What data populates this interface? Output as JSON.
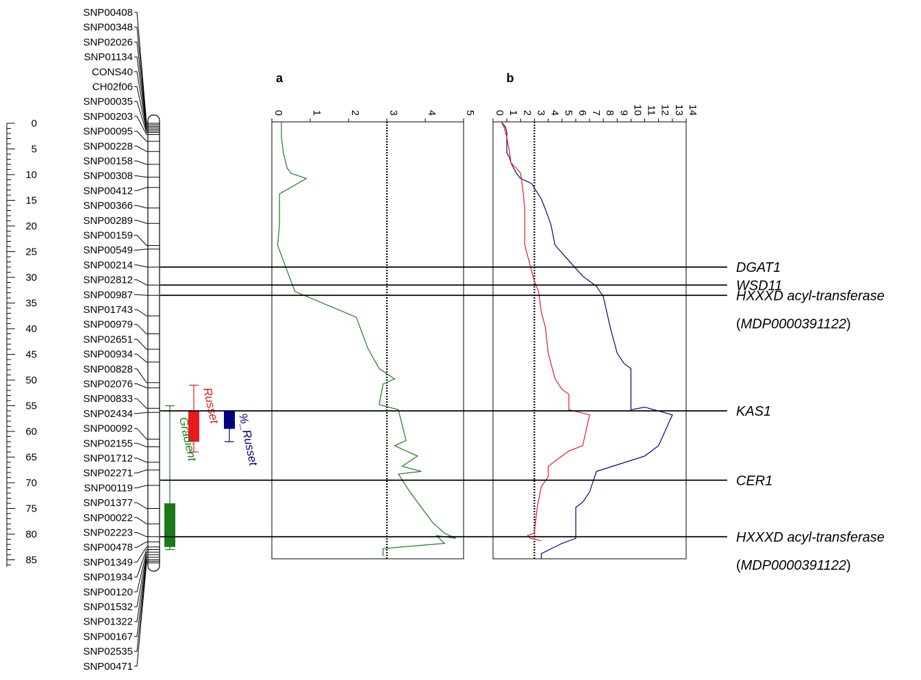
{
  "colors": {
    "gradient": "#1a7a1a",
    "russet": "#e8191d",
    "pct_russet": "#000080",
    "black": "#000000"
  },
  "chart_data": {
    "type": "line",
    "linkage_map": {
      "scale_ticks": [
        0,
        5,
        10,
        15,
        20,
        25,
        30,
        35,
        40,
        45,
        50,
        55,
        60,
        65,
        70,
        75,
        80,
        85
      ],
      "scale_range": [
        0,
        85
      ],
      "markers": [
        {
          "name": "SNP00408",
          "pos": 0.0
        },
        {
          "name": "SNP00348",
          "pos": 0.3
        },
        {
          "name": "SNP02026",
          "pos": 0.6
        },
        {
          "name": "SNP01134",
          "pos": 0.9
        },
        {
          "name": "CONS40",
          "pos": 1.2
        },
        {
          "name": "CH02f06",
          "pos": 1.5
        },
        {
          "name": "SNP00035",
          "pos": 1.8
        },
        {
          "name": "SNP00203",
          "pos": 2.2
        },
        {
          "name": "SNP00095",
          "pos": 3.5
        },
        {
          "name": "SNP00228",
          "pos": 5.5
        },
        {
          "name": "SNP00158",
          "pos": 8.0
        },
        {
          "name": "SNP00308",
          "pos": 10.5
        },
        {
          "name": "SNP00412",
          "pos": 12.5
        },
        {
          "name": "SNP00366",
          "pos": 16.5
        },
        {
          "name": "SNP00289",
          "pos": 19.5
        },
        {
          "name": "SNP00159",
          "pos": 23.8
        },
        {
          "name": "SNP00549",
          "pos": 24.5
        },
        {
          "name": "SNP00214",
          "pos": 28.0
        },
        {
          "name": "SNP02812",
          "pos": 31.5
        },
        {
          "name": "SNP00987",
          "pos": 33.5
        },
        {
          "name": "SNP01743",
          "pos": 37.5
        },
        {
          "name": "SNP00979",
          "pos": 41.0
        },
        {
          "name": "SNP02651",
          "pos": 44.0
        },
        {
          "name": "SNP00934",
          "pos": 46.5
        },
        {
          "name": "SNP00828",
          "pos": 50.5
        },
        {
          "name": "SNP02076",
          "pos": 51.5
        },
        {
          "name": "SNP00833",
          "pos": 55.5
        },
        {
          "name": "SNP02434",
          "pos": 56.3
        },
        {
          "name": "SNP00092",
          "pos": 61.5
        },
        {
          "name": "SNP02155",
          "pos": 63.0
        },
        {
          "name": "SNP01712",
          "pos": 66.0
        },
        {
          "name": "SNP02271",
          "pos": 67.5
        },
        {
          "name": "SNP00119",
          "pos": 70.5
        },
        {
          "name": "SNP01377",
          "pos": 75.0
        },
        {
          "name": "SNP00022",
          "pos": 78.0
        },
        {
          "name": "SNP02223",
          "pos": 80.5
        },
        {
          "name": "SNP00478",
          "pos": 81.5
        },
        {
          "name": "SNP01349",
          "pos": 82.5
        },
        {
          "name": "SNP01934",
          "pos": 83.0
        },
        {
          "name": "SNP00120",
          "pos": 83.5
        },
        {
          "name": "SNP01532",
          "pos": 84.0
        },
        {
          "name": "SNP01322",
          "pos": 84.5
        },
        {
          "name": "SNP00167",
          "pos": 85.0
        },
        {
          "name": "SNP02535",
          "pos": 85.3
        },
        {
          "name": "SNP00471",
          "pos": 85.6
        }
      ]
    },
    "qtl_intervals": [
      {
        "label": "Russet",
        "color": "#e8191d",
        "bar": [
          56,
          62
        ],
        "whisker": [
          51,
          64
        ]
      },
      {
        "label": "%_Russet",
        "color": "#000080",
        "bar": [
          56,
          59.5
        ],
        "whisker": [
          56,
          62
        ]
      },
      {
        "label": "Gradient",
        "color": "#1a7a1a",
        "bar": [
          74,
          82.5
        ],
        "whisker": [
          55,
          83
        ]
      }
    ],
    "genes": [
      {
        "pos": 28.0,
        "name": "DGAT1"
      },
      {
        "pos": 31.5,
        "name": "WSD11"
      },
      {
        "pos": 33.5,
        "name": "HXXXD acyl-transferase",
        "id": "MDP0000391122"
      },
      {
        "pos": 56.0,
        "name": "KAS1"
      },
      {
        "pos": 69.5,
        "name": "CER1"
      },
      {
        "pos": 80.5,
        "name": "HXXXD acyl-transferase",
        "id": "MDP0000391122"
      }
    ],
    "panels": [
      {
        "label": "a",
        "xlim": [
          0,
          5
        ],
        "ticks": [
          0,
          1,
          2,
          3,
          4,
          5
        ],
        "threshold": 3.0,
        "series": [
          {
            "color": "#1a7a1a",
            "points": [
              [
                0.25,
                0
              ],
              [
                0.25,
                3
              ],
              [
                0.3,
                6
              ],
              [
                0.4,
                9
              ],
              [
                0.5,
                10
              ],
              [
                0.9,
                11
              ],
              [
                0.2,
                14
              ],
              [
                0.2,
                20
              ],
              [
                0.15,
                24
              ],
              [
                0.2,
                25
              ],
              [
                0.35,
                28
              ],
              [
                0.5,
                31
              ],
              [
                0.6,
                33
              ],
              [
                2.2,
                38
              ],
              [
                2.5,
                44
              ],
              [
                2.8,
                48
              ],
              [
                3.2,
                50
              ],
              [
                2.9,
                51
              ],
              [
                2.8,
                55
              ],
              [
                3.3,
                56
              ],
              [
                3.5,
                62
              ],
              [
                3.2,
                63
              ],
              [
                3.8,
                65
              ],
              [
                3.4,
                67
              ],
              [
                3.9,
                68
              ],
              [
                3.3,
                68.5
              ],
              [
                3.6,
                72
              ],
              [
                4.2,
                78
              ],
              [
                4.5,
                80
              ],
              [
                4.8,
                81
              ],
              [
                4.3,
                80.5
              ],
              [
                4.5,
                82
              ],
              [
                2.9,
                83
              ],
              [
                2.9,
                84.5
              ]
            ]
          }
        ]
      },
      {
        "label": "b",
        "xlim": [
          0,
          14
        ],
        "ticks": [
          0,
          1,
          2,
          3,
          4,
          5,
          6,
          7,
          8,
          9,
          10,
          11,
          12,
          13,
          14
        ],
        "threshold": 3.0,
        "series": [
          {
            "color": "#000080",
            "points": [
              [
                0.6,
                0
              ],
              [
                0.9,
                1
              ],
              [
                1.0,
                2
              ],
              [
                1.0,
                6
              ],
              [
                1.2,
                7
              ],
              [
                1.3,
                8
              ],
              [
                1.7,
                10
              ],
              [
                2.0,
                11
              ],
              [
                2.8,
                12
              ],
              [
                3.5,
                15
              ],
              [
                3.8,
                17
              ],
              [
                4.2,
                20
              ],
              [
                4.5,
                24
              ],
              [
                5.5,
                27
              ],
              [
                6.5,
                30
              ],
              [
                7.5,
                32
              ],
              [
                8.0,
                34
              ],
              [
                8.5,
                40
              ],
              [
                9.0,
                45
              ],
              [
                9.5,
                47
              ],
              [
                10.0,
                48
              ],
              [
                10.0,
                56
              ],
              [
                11.0,
                55.5
              ],
              [
                13.0,
                57
              ],
              [
                12.0,
                63
              ],
              [
                11.0,
                65
              ],
              [
                7.5,
                68
              ],
              [
                7.0,
                72
              ],
              [
                6.5,
                74
              ],
              [
                6.0,
                75
              ],
              [
                6.0,
                81
              ],
              [
                5.0,
                82
              ],
              [
                3.5,
                84
              ],
              [
                3.5,
                85
              ]
            ]
          },
          {
            "color": "#e8191d",
            "points": [
              [
                0.6,
                0
              ],
              [
                0.8,
                1
              ],
              [
                1.0,
                3
              ],
              [
                1.2,
                6
              ],
              [
                1.3,
                8
              ],
              [
                1.7,
                9
              ],
              [
                2.0,
                10
              ],
              [
                2.2,
                14
              ],
              [
                2.3,
                17
              ],
              [
                2.3,
                20
              ],
              [
                2.3,
                24
              ],
              [
                2.5,
                26
              ],
              [
                3.0,
                31
              ],
              [
                3.3,
                33
              ],
              [
                3.5,
                37
              ],
              [
                3.8,
                40
              ],
              [
                4.0,
                45
              ],
              [
                4.5,
                50
              ],
              [
                5.0,
                52
              ],
              [
                5.5,
                53
              ],
              [
                5.5,
                56
              ],
              [
                7.0,
                57
              ],
              [
                6.5,
                63
              ],
              [
                5.5,
                64
              ],
              [
                4.5,
                66
              ],
              [
                4.0,
                67
              ],
              [
                4.0,
                69
              ],
              [
                3.5,
                71
              ],
              [
                3.2,
                75
              ],
              [
                3.0,
                80
              ],
              [
                2.5,
                80.5
              ],
              [
                2.7,
                81
              ],
              [
                3.5,
                81.5
              ]
            ]
          }
        ]
      }
    ]
  }
}
